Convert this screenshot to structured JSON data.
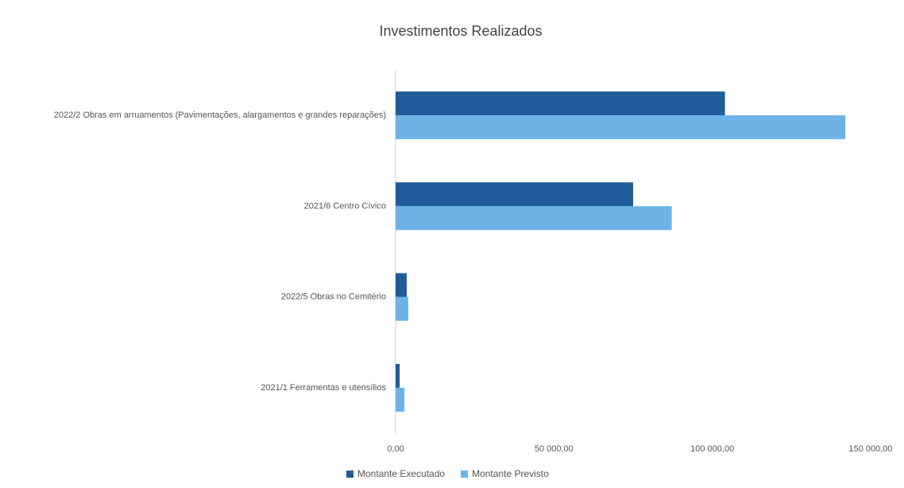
{
  "chart_data": {
    "type": "hbar",
    "title": "Investimentos Realizados",
    "categories": [
      "2022/2 Obras em arruamentos (Pavimentações, alargamentos e grandes reparações)",
      "2021/6 Centro Cívico",
      "2022/5 Obras no Cemitério",
      "2021/1 Ferramentas e utensílios"
    ],
    "series": [
      {
        "name": "Montante Executado",
        "color": "#1f5c99",
        "values": [
          104000,
          75000,
          3500,
          1300
        ]
      },
      {
        "name": "Montante Previsto",
        "color": "#6cb4e8",
        "values": [
          142000,
          87200,
          4000,
          2800
        ]
      }
    ],
    "xlim": [
      0,
      150000
    ],
    "xticks": [
      {
        "value": 0,
        "label": "0,00"
      },
      {
        "value": 50000,
        "label": "50 000,00"
      },
      {
        "value": 100000,
        "label": "100 000,00"
      },
      {
        "value": 150000,
        "label": "150 000,00"
      }
    ],
    "grid": false,
    "legend": "bottom"
  }
}
